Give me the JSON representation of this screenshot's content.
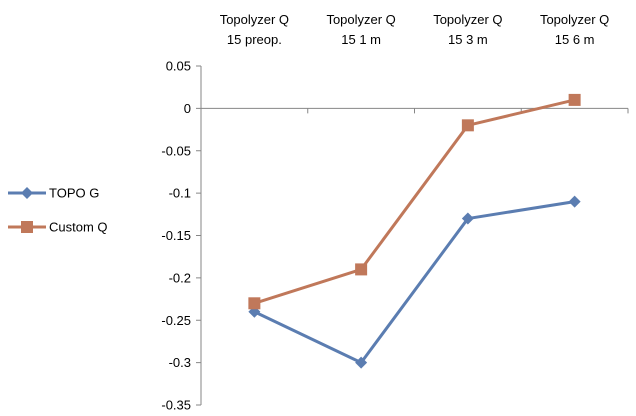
{
  "chart_data": {
    "type": "line",
    "categories": [
      [
        "Topolyzer Q",
        "15 preop."
      ],
      [
        "Topolyzer Q",
        "15 1 m"
      ],
      [
        "Topolyzer Q",
        "15 3 m"
      ],
      [
        "Topolyzer Q",
        "15 6 m"
      ]
    ],
    "series": [
      {
        "name": "TOPO G",
        "values": [
          -0.24,
          -0.3,
          -0.13,
          -0.11
        ],
        "color": "#5b7db1",
        "marker": "diamond"
      },
      {
        "name": "Custom Q",
        "values": [
          -0.23,
          -0.19,
          -0.02,
          0.01
        ],
        "color": "#c0785a",
        "marker": "square"
      }
    ],
    "ylim": [
      -0.35,
      0.05
    ],
    "yticks": [
      "0.05",
      "0",
      "-0.05",
      "-0.1",
      "-0.15",
      "-0.2",
      "-0.25",
      "-0.3",
      "-0.35"
    ],
    "yticks_values": [
      0.05,
      0,
      -0.05,
      -0.1,
      -0.15,
      -0.2,
      -0.25,
      -0.3,
      -0.35
    ],
    "xaxis_position": "top-labels",
    "legend_position": "left",
    "grid": false
  }
}
